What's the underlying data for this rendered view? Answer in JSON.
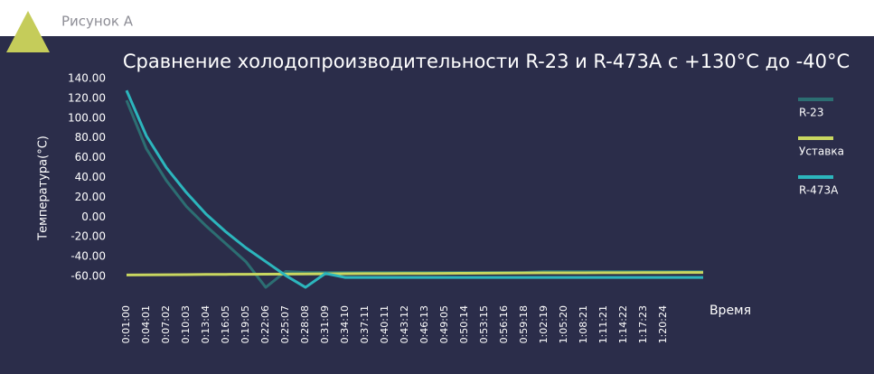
{
  "header": {
    "label": "Рисунок А"
  },
  "chart_data": {
    "type": "line",
    "title": "Сравнение холодопроизводительности R-23 и R-473A с +130°C до -40°C",
    "y_label": "Температура(°C)",
    "x_label": "Время",
    "categories": [
      "0:01:00",
      "0:04:01",
      "0:07:02",
      "0:10:03",
      "0:13:04",
      "0:16:05",
      "0:19:05",
      "0:22:06",
      "0:25:07",
      "0:28:08",
      "0:31:09",
      "0:34:10",
      "0:37:11",
      "0:40:11",
      "0:43:12",
      "0:46:13",
      "0:49:05",
      "0:50:14",
      "0:53:15",
      "0:56:16",
      "0:59:18",
      "1:02:19",
      "1:05:20",
      "1:08:21",
      "1:11:21",
      "1:14:22",
      "1:17:23",
      "1:20:24",
      null,
      null
    ],
    "series": [
      {
        "name": "R-23",
        "color": "#2c6e72",
        "values": [
          118,
          69,
          37,
          11,
          -9,
          -27,
          -45,
          -71,
          -55,
          -56,
          -56,
          -56,
          -56,
          -56,
          -56,
          -56,
          -56,
          -56,
          -56,
          -56,
          -56,
          -55,
          -55,
          -55,
          -55,
          -55,
          -55,
          -55,
          -55,
          -55
        ]
      },
      {
        "name": "Уставка",
        "color": "#c9d760",
        "values": [
          -58.5,
          -58.4,
          -58.3,
          -58.2,
          -58,
          -57.9,
          -57.8,
          -57.7,
          -57.6,
          -57.5,
          -57.4,
          -57.3,
          -57.2,
          -57.1,
          -57,
          -57,
          -56.9,
          -56.8,
          -56.7,
          -56.6,
          -56.5,
          -56.4,
          -56.3,
          -56.3,
          -56.2,
          -56.2,
          -56.1,
          -56.1,
          -56,
          -56
        ]
      },
      {
        "name": "R-473A",
        "color": "#2cb6bd",
        "values": [
          128,
          82,
          50,
          25,
          3,
          -15,
          -31,
          -45,
          -59,
          -71,
          -57,
          -61,
          -61,
          -61,
          -61,
          -61,
          -61,
          -61,
          -61,
          -61,
          -61,
          -61,
          -61,
          -61,
          -61,
          -61,
          -61,
          -61,
          -61,
          -61
        ]
      }
    ],
    "ylim": [
      -60,
      140
    ],
    "yticks": [
      {
        "value": 140,
        "label": "140.00"
      },
      {
        "value": 120,
        "label": "120.00"
      },
      {
        "value": 100,
        "label": "100.00"
      },
      {
        "value": 80,
        "label": "80.00"
      },
      {
        "value": 60,
        "label": "60.00"
      },
      {
        "value": 40,
        "label": "40.00"
      },
      {
        "value": 20,
        "label": "20.00"
      },
      {
        "value": 0,
        "label": "0.00"
      },
      {
        "value": -20,
        "label": "-20.00"
      },
      {
        "value": -40,
        "label": "-40.00"
      },
      {
        "value": -60,
        "label": "-60.00"
      }
    ],
    "legend": "right"
  }
}
